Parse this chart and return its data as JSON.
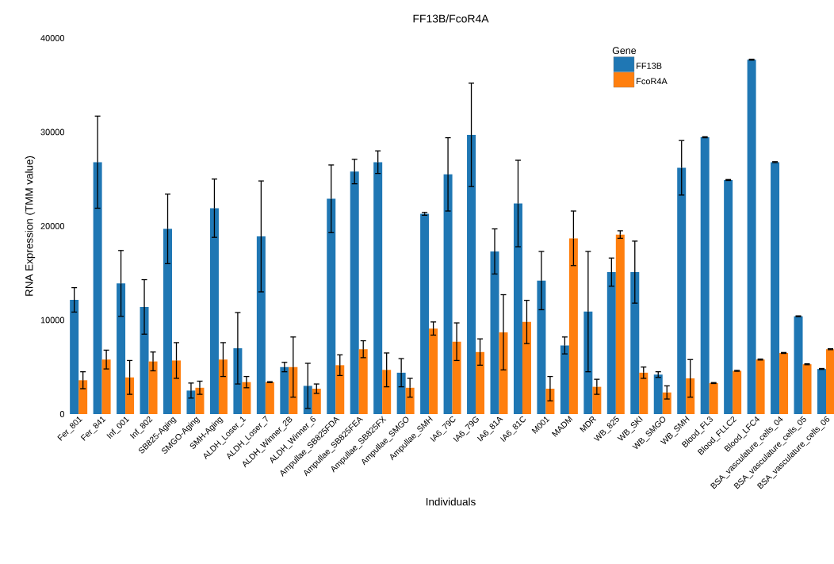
{
  "chart_data": {
    "type": "bar",
    "title": "FF13B/FcoR4A",
    "xlabel": "Individuals",
    "ylabel": "RNA Expression (TMM value)",
    "legend_title": "Gene",
    "legend": "top right",
    "categories": [
      "Fer_801",
      "Fer_841",
      "Inf_001",
      "Inf_802",
      "SB825-Aging",
      "SMGO-Aging",
      "SMH-Aging",
      "ALDH_Loser_1",
      "ALDH_Loser_7",
      "ALDH_Winner_2B",
      "ALDH_Winner_6",
      "Ampullae_SB825FDA",
      "Ampullae_SB825FEA",
      "Ampullae_SB825FX",
      "Ampullae_SMGO",
      "Ampullae_SMH",
      "IA6_79C",
      "IA6_79G",
      "IA6_81A",
      "IA6_81C",
      "M001",
      "MADM",
      "MDR",
      "WB_825",
      "WB_SKI",
      "WB_SMGO",
      "WB_SMH",
      "Blood_FL3",
      "Blood_FLLC2",
      "Blood_LFC4",
      "BSA_vasculature_cells_04",
      "BSA_vasculature_cells_05",
      "BSA_vasculature_cells_06"
    ],
    "series": [
      {
        "name": "FF13B",
        "color": "#1f77b4",
        "values": [
          12150,
          26800,
          13900,
          11400,
          19700,
          2500,
          21900,
          7000,
          18900,
          5000,
          3000,
          22900,
          25800,
          26800,
          4400,
          21300,
          25500,
          29700,
          17300,
          22400,
          14200,
          7300,
          10900,
          15100,
          15100,
          4200,
          26200,
          29450,
          24900,
          37700,
          26800,
          10400,
          4800
        ],
        "errors": [
          1300,
          4900,
          3500,
          2900,
          3700,
          800,
          3100,
          3800,
          5900,
          500,
          2400,
          3600,
          1300,
          1200,
          1500,
          150,
          3900,
          5500,
          2400,
          4600,
          3100,
          900,
          6400,
          1500,
          3300,
          300,
          2900,
          50,
          50,
          50,
          50,
          50,
          50
        ]
      },
      {
        "name": "FcoR4A",
        "color": "#ff7f0e",
        "values": [
          3600,
          5800,
          3900,
          5600,
          5700,
          2800,
          5800,
          3400,
          3400,
          5000,
          2700,
          5200,
          6900,
          4700,
          2800,
          9100,
          7700,
          6600,
          8700,
          9800,
          2700,
          18700,
          2900,
          19100,
          4400,
          2300,
          3800,
          3300,
          4600,
          5800,
          6500,
          5300,
          6900
        ],
        "errors": [
          900,
          1000,
          1800,
          1000,
          1900,
          700,
          1800,
          600,
          50,
          3200,
          500,
          1100,
          900,
          1800,
          1000,
          700,
          2000,
          1400,
          4000,
          2300,
          1300,
          2900,
          800,
          400,
          600,
          700,
          2000,
          50,
          50,
          50,
          50,
          50,
          50
        ]
      }
    ],
    "ylim": [
      0,
      40000
    ],
    "yticks": [
      0,
      10000,
      20000,
      30000,
      40000
    ]
  }
}
